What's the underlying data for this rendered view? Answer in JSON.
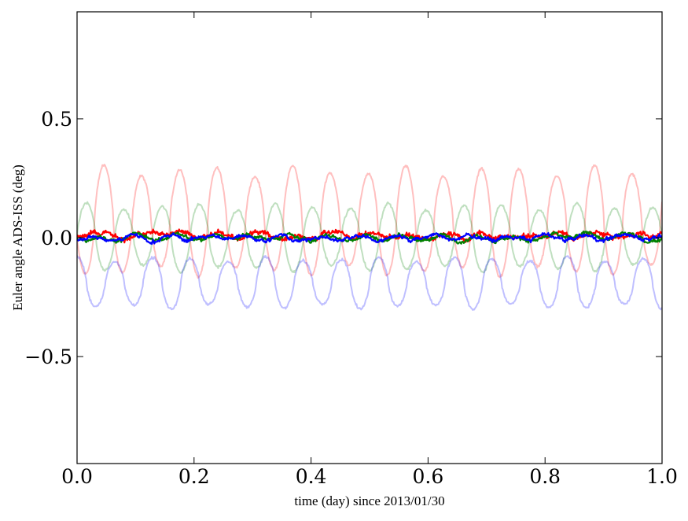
{
  "chart_data": {
    "type": "line",
    "title": "",
    "xlabel": "time (day) since 2013/01/30",
    "ylabel": "Euler angle ADS-ISS (deg)",
    "xlim": [
      0.0,
      1.0
    ],
    "ylim": [
      -0.95,
      0.95
    ],
    "xticks": [
      0.0,
      0.2,
      0.4,
      0.6,
      0.8,
      1.0
    ],
    "xtick_labels": [
      "0.0",
      "0.2",
      "0.4",
      "0.6",
      "0.8",
      "1.0"
    ],
    "yticks": [
      -0.5,
      0.0,
      0.5
    ],
    "ytick_labels": [
      "−0.5",
      "0.0",
      "0.5"
    ],
    "grid": false,
    "legend": "none",
    "series": [
      {
        "color": "#ff0000",
        "opacity": 0.25,
        "style": "faint",
        "kind": "periodic",
        "period": 0.0645,
        "phase": 0.046,
        "mean": 0.03,
        "peak": 0.28,
        "trough": -0.14,
        "noise": 0.008
      },
      {
        "color": "#008000",
        "opacity": 0.25,
        "style": "faint",
        "kind": "periodic",
        "period": 0.0645,
        "phase": 0.016,
        "mean": 0.0,
        "peak": 0.13,
        "trough": -0.13,
        "noise": 0.008
      },
      {
        "color": "#0000ff",
        "opacity": 0.25,
        "style": "faint",
        "kind": "periodic",
        "period": 0.0645,
        "phase": 0.0,
        "mean": -0.18,
        "peak": -0.09,
        "trough": -0.29,
        "noise": 0.008
      },
      {
        "color": "#ff0000",
        "opacity": 1.0,
        "style": "bold",
        "kind": "noisy",
        "mean": 0.01,
        "amplitude": 0.025,
        "noise": 0.012
      },
      {
        "color": "#008000",
        "opacity": 1.0,
        "style": "bold",
        "kind": "noisy",
        "mean": 0.0,
        "amplitude": 0.02,
        "noise": 0.008
      },
      {
        "color": "#0000ff",
        "opacity": 1.0,
        "style": "bold",
        "kind": "noisy",
        "mean": 0.0,
        "amplitude": 0.02,
        "noise": 0.008
      }
    ]
  }
}
